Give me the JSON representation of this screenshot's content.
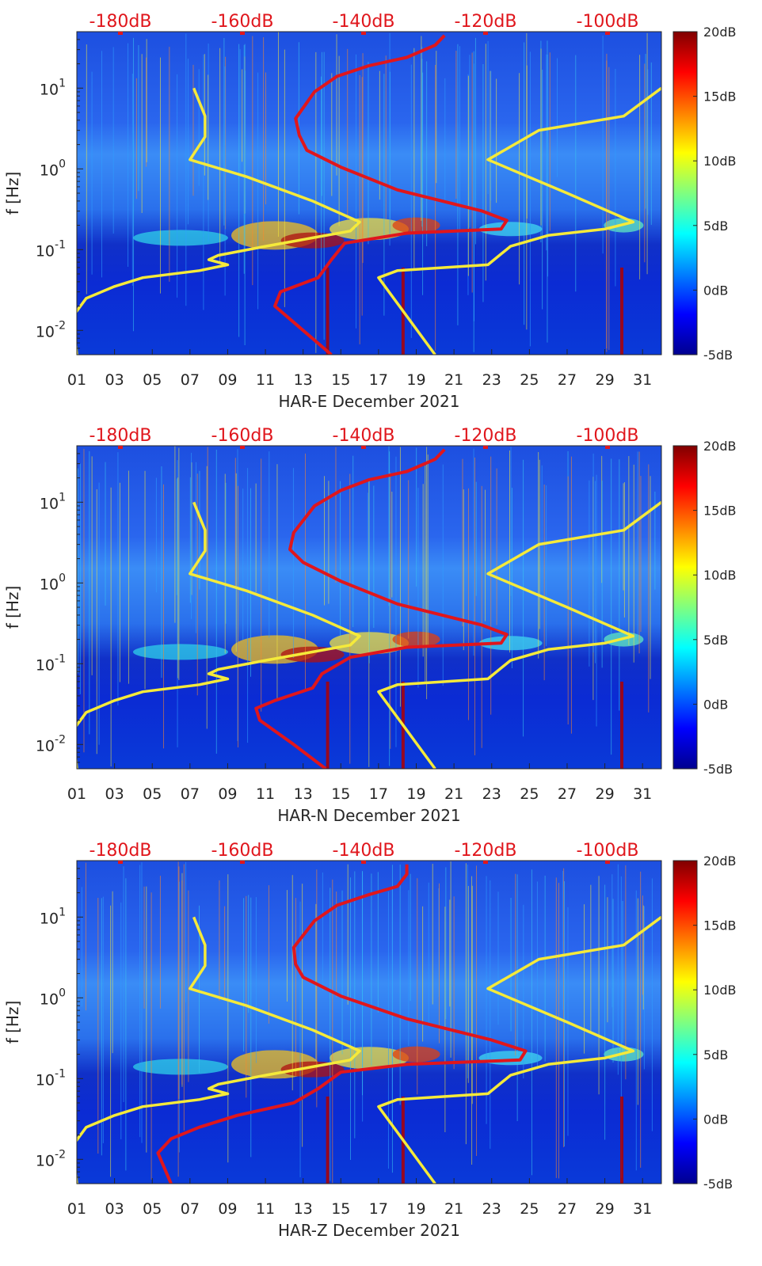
{
  "chart_data": [
    {
      "type": "heatmap",
      "title": "HAR-E",
      "xlabel": "HAR-E December 2021",
      "ylabel": "f [Hz]",
      "xlim": [
        1,
        32
      ],
      "ylim": [
        0.005,
        50
      ],
      "yscale": "log",
      "x_ticks": [
        "01",
        "03",
        "05",
        "07",
        "09",
        "11",
        "13",
        "15",
        "17",
        "19",
        "21",
        "23",
        "25",
        "27",
        "29",
        "31"
      ],
      "y_ticks": [
        {
          "value": 0.01,
          "base": "10",
          "exp": "-2"
        },
        {
          "value": 0.1,
          "base": "10",
          "exp": "-1"
        },
        {
          "value": 1,
          "base": "10",
          "exp": "0"
        },
        {
          "value": 10,
          "base": "10",
          "exp": "1"
        }
      ],
      "top_axis_labels": [
        "-180dB",
        "-160dB",
        "-140dB",
        "-120dB",
        "-100dB"
      ],
      "colorbar": {
        "labels": [
          "20dB",
          "15dB",
          "10dB",
          "5dB",
          "0dB",
          "-5dB"
        ],
        "range": [
          -5,
          20
        ]
      },
      "series": [
        {
          "name": "Noise model low",
          "color": "#f5ea3a",
          "points": [
            [
              1.0,
              0.005
            ],
            [
              0.8,
              0.015
            ],
            [
              1.5,
              0.025
            ],
            [
              3.0,
              0.035
            ],
            [
              4.5,
              0.045
            ],
            [
              7.5,
              0.055
            ],
            [
              9.0,
              0.065
            ],
            [
              8.0,
              0.075
            ],
            [
              8.5,
              0.085
            ],
            [
              11.0,
              0.11
            ],
            [
              13.5,
              0.14
            ],
            [
              15.5,
              0.17
            ],
            [
              16.0,
              0.22
            ],
            [
              13.5,
              0.4
            ],
            [
              10.0,
              0.8
            ],
            [
              7.0,
              1.3
            ],
            [
              7.8,
              2.5
            ],
            [
              7.8,
              4.5
            ],
            [
              7.2,
              10.0
            ]
          ]
        },
        {
          "name": "Noise model high",
          "color": "#f5ea3a",
          "points": [
            [
              20.0,
              0.005
            ],
            [
              17.0,
              0.045
            ],
            [
              18.0,
              0.055
            ],
            [
              22.8,
              0.065
            ],
            [
              24.0,
              0.11
            ],
            [
              26.0,
              0.15
            ],
            [
              29.0,
              0.18
            ],
            [
              30.5,
              0.22
            ],
            [
              27.0,
              0.5
            ],
            [
              22.8,
              1.3
            ],
            [
              25.5,
              3.0
            ],
            [
              30.0,
              4.5
            ],
            [
              32.0,
              10.0
            ]
          ]
        },
        {
          "name": "Signal PSD",
          "color": "#e0161c",
          "points": [
            [
              14.5,
              0.005
            ],
            [
              13.0,
              0.01
            ],
            [
              11.5,
              0.02
            ],
            [
              11.8,
              0.03
            ],
            [
              13.8,
              0.045
            ],
            [
              14.5,
              0.075
            ],
            [
              15.2,
              0.12
            ],
            [
              18.5,
              0.16
            ],
            [
              23.5,
              0.18
            ],
            [
              23.8,
              0.23
            ],
            [
              22.5,
              0.3
            ],
            [
              18.0,
              0.55
            ],
            [
              15.0,
              1.05
            ],
            [
              13.2,
              1.7
            ],
            [
              12.8,
              2.6
            ],
            [
              12.6,
              4.2
            ],
            [
              13.6,
              9.0
            ],
            [
              14.8,
              14.0
            ],
            [
              16.5,
              19.0
            ],
            [
              18.5,
              24.0
            ],
            [
              20.0,
              34.0
            ],
            [
              20.5,
              45.0
            ]
          ]
        }
      ]
    },
    {
      "type": "heatmap",
      "title": "HAR-N",
      "xlabel": "HAR-N December 2021",
      "ylabel": "f [Hz]",
      "xlim": [
        1,
        32
      ],
      "ylim": [
        0.005,
        50
      ],
      "yscale": "log",
      "x_ticks": [
        "01",
        "03",
        "05",
        "07",
        "09",
        "11",
        "13",
        "15",
        "17",
        "19",
        "21",
        "23",
        "25",
        "27",
        "29",
        "31"
      ],
      "y_ticks": [
        {
          "value": 0.01,
          "base": "10",
          "exp": "-2"
        },
        {
          "value": 0.1,
          "base": "10",
          "exp": "-1"
        },
        {
          "value": 1,
          "base": "10",
          "exp": "0"
        },
        {
          "value": 10,
          "base": "10",
          "exp": "1"
        }
      ],
      "top_axis_labels": [
        "-180dB",
        "-160dB",
        "-140dB",
        "-120dB",
        "-100dB"
      ],
      "colorbar": {
        "labels": [
          "20dB",
          "15dB",
          "10dB",
          "5dB",
          "0dB",
          "-5dB"
        ],
        "range": [
          -5,
          20
        ]
      },
      "series": [
        {
          "name": "Noise model low",
          "color": "#f5ea3a",
          "points": [
            [
              1.0,
              0.005
            ],
            [
              0.8,
              0.015
            ],
            [
              1.5,
              0.025
            ],
            [
              3.0,
              0.035
            ],
            [
              4.5,
              0.045
            ],
            [
              7.5,
              0.055
            ],
            [
              9.0,
              0.065
            ],
            [
              8.0,
              0.075
            ],
            [
              8.5,
              0.085
            ],
            [
              11.0,
              0.11
            ],
            [
              13.5,
              0.14
            ],
            [
              15.5,
              0.17
            ],
            [
              16.0,
              0.22
            ],
            [
              13.5,
              0.4
            ],
            [
              10.0,
              0.8
            ],
            [
              7.0,
              1.3
            ],
            [
              7.8,
              2.5
            ],
            [
              7.8,
              4.5
            ],
            [
              7.2,
              10.0
            ]
          ]
        },
        {
          "name": "Noise model high",
          "color": "#f5ea3a",
          "points": [
            [
              20.0,
              0.005
            ],
            [
              17.0,
              0.045
            ],
            [
              18.0,
              0.055
            ],
            [
              22.8,
              0.065
            ],
            [
              24.0,
              0.11
            ],
            [
              26.0,
              0.15
            ],
            [
              29.0,
              0.18
            ],
            [
              30.5,
              0.22
            ],
            [
              27.0,
              0.5
            ],
            [
              22.8,
              1.3
            ],
            [
              25.5,
              3.0
            ],
            [
              30.0,
              4.5
            ],
            [
              32.0,
              10.0
            ]
          ]
        },
        {
          "name": "Signal PSD",
          "color": "#e0161c",
          "points": [
            [
              14.2,
              0.005
            ],
            [
              12.5,
              0.01
            ],
            [
              10.7,
              0.02
            ],
            [
              10.5,
              0.028
            ],
            [
              11.5,
              0.035
            ],
            [
              13.5,
              0.05
            ],
            [
              14.0,
              0.075
            ],
            [
              15.5,
              0.12
            ],
            [
              18.5,
              0.16
            ],
            [
              23.5,
              0.18
            ],
            [
              23.8,
              0.23
            ],
            [
              22.5,
              0.3
            ],
            [
              18.0,
              0.55
            ],
            [
              15.0,
              1.05
            ],
            [
              13.0,
              1.8
            ],
            [
              12.3,
              2.6
            ],
            [
              12.5,
              4.2
            ],
            [
              13.6,
              9.0
            ],
            [
              15.0,
              14.0
            ],
            [
              16.5,
              19.0
            ],
            [
              18.5,
              24.0
            ],
            [
              20.0,
              34.0
            ],
            [
              20.5,
              45.0
            ]
          ]
        }
      ]
    },
    {
      "type": "heatmap",
      "title": "HAR-Z",
      "xlabel": "HAR-Z December 2021",
      "ylabel": "f [Hz]",
      "xlim": [
        1,
        32
      ],
      "ylim": [
        0.005,
        50
      ],
      "yscale": "log",
      "x_ticks": [
        "01",
        "03",
        "05",
        "07",
        "09",
        "11",
        "13",
        "15",
        "17",
        "19",
        "21",
        "23",
        "25",
        "27",
        "29",
        "31"
      ],
      "y_ticks": [
        {
          "value": 0.01,
          "base": "10",
          "exp": "-2"
        },
        {
          "value": 0.1,
          "base": "10",
          "exp": "-1"
        },
        {
          "value": 1,
          "base": "10",
          "exp": "0"
        },
        {
          "value": 10,
          "base": "10",
          "exp": "1"
        }
      ],
      "top_axis_labels": [
        "-180dB",
        "-160dB",
        "-140dB",
        "-120dB",
        "-100dB"
      ],
      "colorbar": {
        "labels": [
          "20dB",
          "15dB",
          "10dB",
          "5dB",
          "0dB",
          "-5dB"
        ],
        "range": [
          -5,
          20
        ]
      },
      "series": [
        {
          "name": "Noise model low",
          "color": "#f5ea3a",
          "points": [
            [
              1.0,
              0.005
            ],
            [
              0.8,
              0.015
            ],
            [
              1.5,
              0.025
            ],
            [
              3.0,
              0.035
            ],
            [
              4.5,
              0.045
            ],
            [
              7.5,
              0.055
            ],
            [
              9.0,
              0.065
            ],
            [
              8.0,
              0.075
            ],
            [
              8.5,
              0.085
            ],
            [
              11.0,
              0.11
            ],
            [
              13.5,
              0.14
            ],
            [
              15.5,
              0.17
            ],
            [
              16.0,
              0.22
            ],
            [
              13.5,
              0.4
            ],
            [
              10.0,
              0.8
            ],
            [
              7.0,
              1.3
            ],
            [
              7.8,
              2.5
            ],
            [
              7.8,
              4.5
            ],
            [
              7.2,
              10.0
            ]
          ]
        },
        {
          "name": "Noise model high",
          "color": "#f5ea3a",
          "points": [
            [
              20.0,
              0.005
            ],
            [
              17.0,
              0.045
            ],
            [
              18.0,
              0.055
            ],
            [
              22.8,
              0.065
            ],
            [
              24.0,
              0.11
            ],
            [
              26.0,
              0.15
            ],
            [
              29.0,
              0.18
            ],
            [
              30.5,
              0.22
            ],
            [
              27.0,
              0.5
            ],
            [
              22.8,
              1.3
            ],
            [
              25.5,
              3.0
            ],
            [
              30.0,
              4.5
            ],
            [
              32.0,
              10.0
            ]
          ]
        },
        {
          "name": "Signal PSD",
          "color": "#e0161c",
          "points": [
            [
              6.0,
              0.005
            ],
            [
              5.3,
              0.012
            ],
            [
              6.0,
              0.018
            ],
            [
              7.5,
              0.025
            ],
            [
              9.5,
              0.035
            ],
            [
              12.5,
              0.05
            ],
            [
              13.8,
              0.075
            ],
            [
              15.0,
              0.12
            ],
            [
              18.5,
              0.15
            ],
            [
              24.5,
              0.17
            ],
            [
              24.8,
              0.22
            ],
            [
              23.0,
              0.3
            ],
            [
              18.5,
              0.55
            ],
            [
              15.0,
              1.05
            ],
            [
              13.0,
              1.8
            ],
            [
              12.6,
              2.6
            ],
            [
              12.5,
              4.2
            ],
            [
              13.6,
              9.0
            ],
            [
              14.8,
              14.0
            ],
            [
              16.5,
              19.0
            ],
            [
              18.0,
              24.0
            ],
            [
              18.5,
              34.0
            ],
            [
              18.5,
              45.0
            ]
          ]
        }
      ]
    }
  ]
}
